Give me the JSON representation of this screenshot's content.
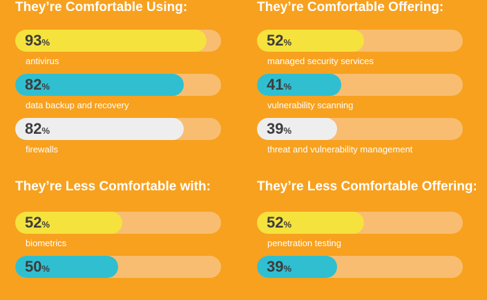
{
  "colors": {
    "background": "#f7a11f",
    "track": "#f8bd70",
    "yellow": "#f5e23c",
    "teal": "#2fbfd1",
    "light": "#eeeeee",
    "title_text": "#ffffff",
    "value_text": "#3c3c3c"
  },
  "percent_sign": "%",
  "chart_data": [
    {
      "type": "bar",
      "title": "They’re Comfortable Using:",
      "categories": [
        "antivirus",
        "data backup and recovery",
        "firewalls"
      ],
      "values": [
        93,
        82,
        82
      ],
      "bar_colors": [
        "yellow",
        "teal",
        "light"
      ],
      "ylim": [
        0,
        100
      ]
    },
    {
      "type": "bar",
      "title": "They’re Comfortable Offering:",
      "categories": [
        "managed security services",
        "vulnerability scanning",
        "threat and vulnerability management"
      ],
      "values": [
        52,
        41,
        39
      ],
      "bar_colors": [
        "yellow",
        "teal",
        "light"
      ],
      "ylim": [
        0,
        100
      ]
    },
    {
      "type": "bar",
      "title": "They’re Less Comfortable with:",
      "categories": [
        "biometrics",
        ""
      ],
      "values": [
        52,
        50
      ],
      "bar_colors": [
        "yellow",
        "teal"
      ],
      "ylim": [
        0,
        100
      ]
    },
    {
      "type": "bar",
      "title": "They’re Less Comfortable Offering:",
      "categories": [
        "penetration testing",
        ""
      ],
      "values": [
        52,
        39
      ],
      "bar_colors": [
        "yellow",
        "teal"
      ],
      "ylim": [
        0,
        100
      ]
    }
  ]
}
